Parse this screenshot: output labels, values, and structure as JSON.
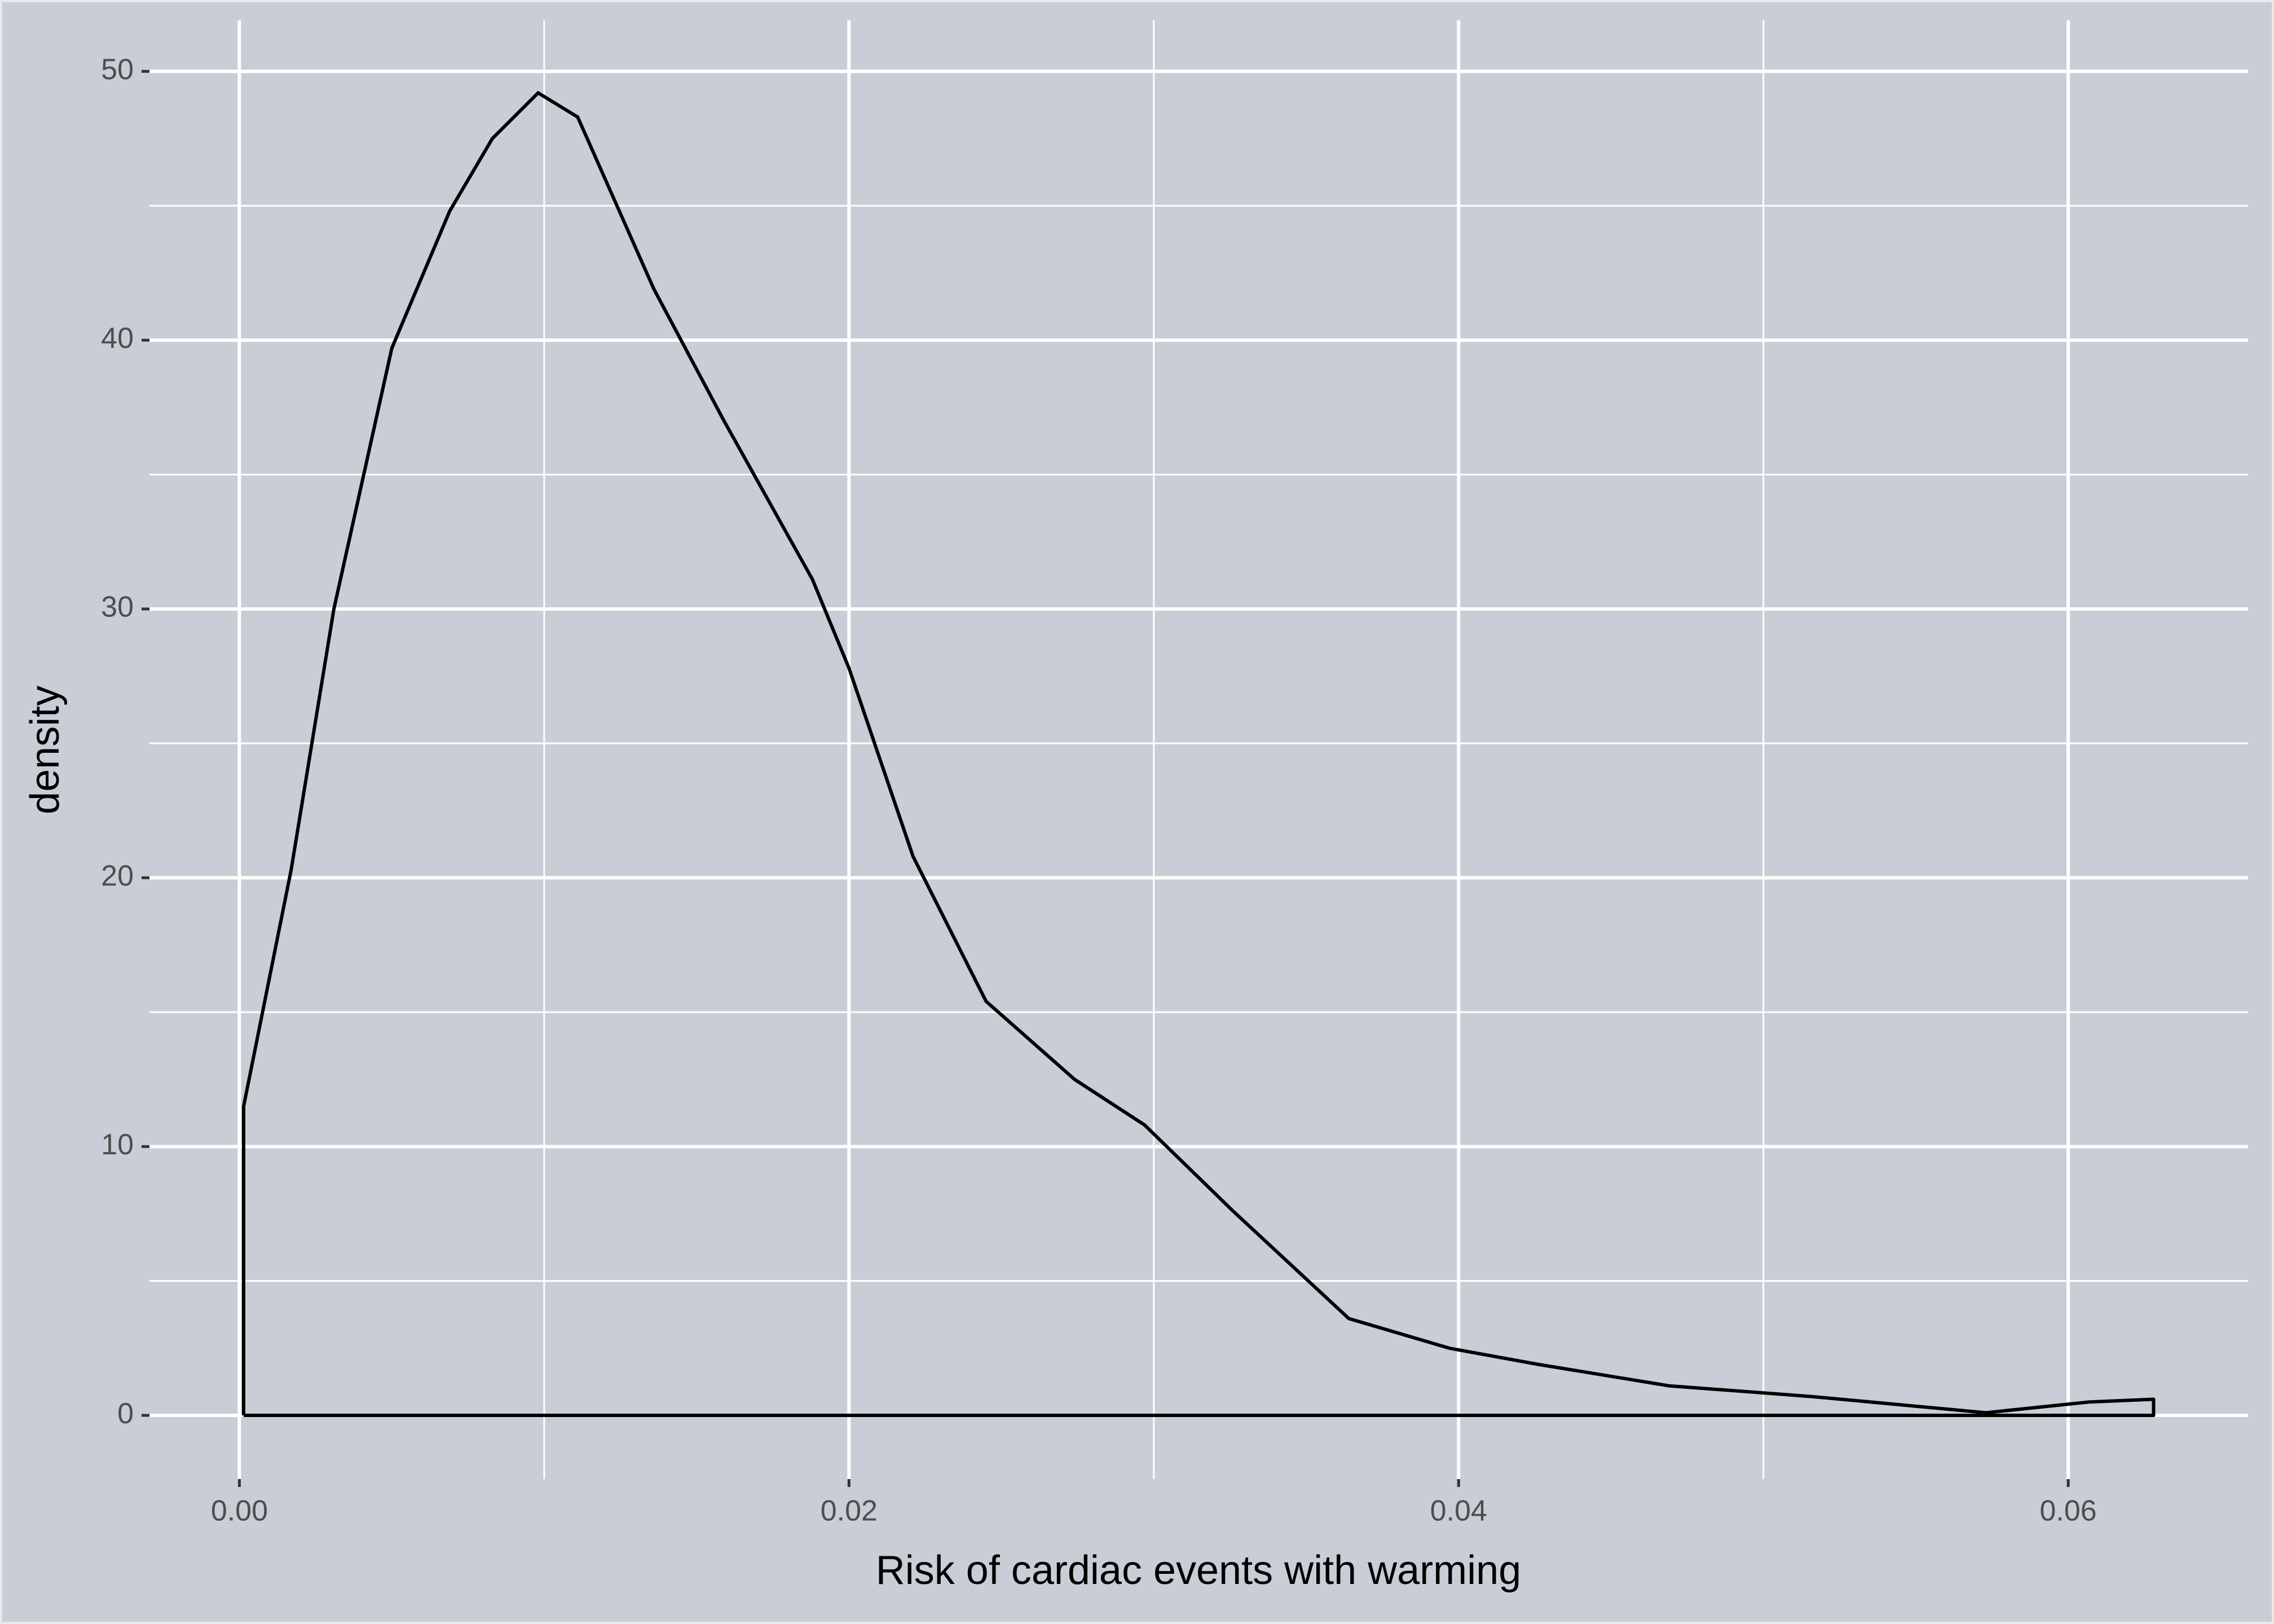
{
  "chart_data": {
    "type": "density",
    "x_label": "Risk of cardiac events with warming",
    "y_label": "density",
    "x": [
      0.00014,
      0.00014,
      0.0017,
      0.0031,
      0.005,
      0.0069,
      0.0083,
      0.0098,
      0.0111,
      0.0136,
      0.0159,
      0.0188,
      0.02,
      0.0221,
      0.0245,
      0.0274,
      0.0297,
      0.0326,
      0.0364,
      0.0397,
      0.0426,
      0.0469,
      0.0516,
      0.0573,
      0.0607,
      0.0628,
      0.0628,
      0.00014
    ],
    "values": [
      0,
      11.5,
      20.3,
      30,
      39.7,
      44.8,
      47.5,
      49.2,
      48.3,
      41.9,
      37,
      31.1,
      27.8,
      20.8,
      15.4,
      12.5,
      10.8,
      7.6,
      3.6,
      2.5,
      1.9,
      1.1,
      0.7,
      0.1,
      0.5,
      0.6,
      0,
      0
    ],
    "color": "#000000",
    "xlim": [
      -0.00295,
      0.0659
    ],
    "ylim": [
      -2.37,
      51.9
    ],
    "xticks": [
      {
        "value": 0,
        "label": "0.00"
      },
      0.02,
      0.04,
      0.06
    ],
    "yticks": [
      0,
      10,
      20,
      30,
      40,
      50
    ],
    "x_minor_grid": [
      0.01,
      0.03,
      0.05
    ],
    "y_minor_grid": [
      5,
      15,
      25,
      35,
      45
    ],
    "grid": true
  }
}
